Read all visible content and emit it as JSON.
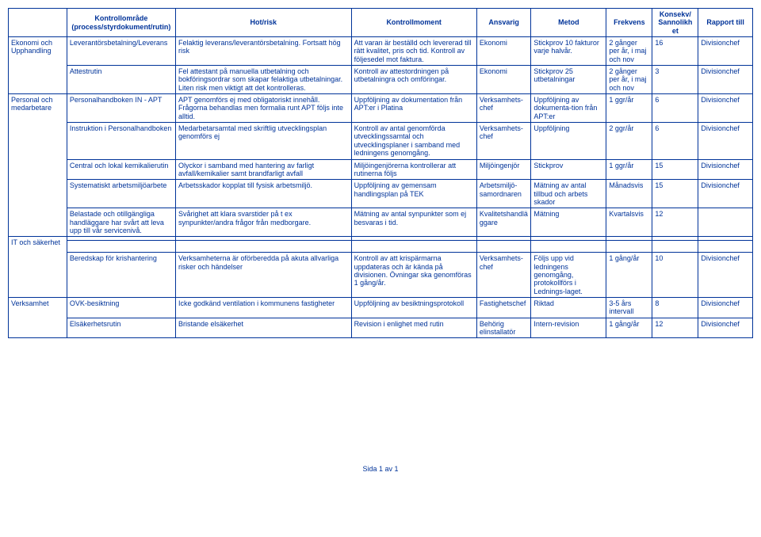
{
  "headers": {
    "col0": "",
    "col1": "Kontrollområde\n(process/styrdokument/rutin)",
    "col2": "Hot/risk",
    "col3": "Kontrollmoment",
    "col4": "Ansvarig",
    "col5": "Metod",
    "col6": "Frekvens",
    "col7": "Konsekv/\nSannolikh\net",
    "col8": "Rapport till"
  },
  "sections": {
    "s0": "Ekonomi och Upphandling",
    "s1": "Personal och medarbetare",
    "s2": "IT och säkerhet",
    "s3": "Verksamhet"
  },
  "rows": {
    "r0": {
      "c1": "Leverantörsbetalning/Leverans",
      "c2": "Felaktig leverans/leverantörsbetalning. Fortsatt hög risk",
      "c3": "Att varan är beställd och levererad till rätt kvalitet, pris och tid. Kontroll av följesedel mot faktura.",
      "c4": "Ekonomi",
      "c5": "Stickprov 10 fakturor varje halvår.",
      "c6": "2 gånger per år, i maj och nov",
      "c7": "16",
      "c8": "Divisionchef"
    },
    "r1": {
      "c1": "Attestrutin",
      "c2": "Fel attestant på manuella utbetalning och bokföringsordrar som skapar felaktiga utbetalningar.\nLiten risk men viktigt att det kontrolleras.",
      "c3": "Kontroll av attestordningen på utbetalningra och omföringar.",
      "c4": "Ekonomi",
      "c5": "Stickprov 25 utbetalningar",
      "c6": "2 gånger per år, i maj och nov",
      "c7": "3",
      "c8": "Divisionchef"
    },
    "r2": {
      "c1": "Personalhandboken IN - APT",
      "c2": "APT genomförs ej med obligatoriskt innehåll. Frågorna behandlas men formalia runt APT följs inte alltid.",
      "c3": "Uppföljning av dokumentation från APT:er i Platina",
      "c4": "Verksamhets-chef",
      "c5": "Uppföljning av dokumenta-tion från APT:er",
      "c6": "1 ggr/år",
      "c7": "6",
      "c8": "Divisionchef"
    },
    "r3": {
      "c1": "Instruktion i Personalhandboken",
      "c2": "Medarbetarsamtal med skriftlig utvecklingsplan genomförs ej",
      "c3": "Kontroll av antal genomförda utvecklingssamtal och utvecklingsplaner i samband med ledningens genomgång.",
      "c4": "Verksamhets-chef",
      "c5": "Uppföljning",
      "c6": "2 ggr/år",
      "c7": "6",
      "c8": "Divisionchef"
    },
    "r4": {
      "c1": "Central och lokal kemikalierutin",
      "c2": "Olyckor i samband med hantering av farligt avfall/kemikalier samt brandfarligt avfall",
      "c3": "Miljöingenjörerna kontrollerar att rutinerna följs",
      "c4": "Miljöingenjör",
      "c5": "Stickprov",
      "c6": "1 ggr/år",
      "c7": "15",
      "c8": "Divisionchef"
    },
    "r5": {
      "c1": "Systematiskt arbetsmiljöarbete",
      "c2": "Arbetsskador kopplat till fysisk arbetsmiljö.",
      "c3": "Uppföljning av gemensam handlingsplan på TEK",
      "c4": "Arbetsmiljö-samordnaren",
      "c5": "Mätning av antal tillbud och arbets skador",
      "c6": "Månadsvis",
      "c7": "15",
      "c8": "Divisionchef"
    },
    "r6": {
      "c1": "Belastade och otillgängliga handläggare har svårt att leva upp till vår servicenivå.",
      "c2": "Svårighet att klara svarstider på t ex synpunkter/andra frågor från medborgare.",
      "c3": "Mätning av antal synpunkter som ej besvaras i tid.",
      "c4": "Kvalitetshandläggare",
      "c5": "Mätning",
      "c6": "Kvartalsvis",
      "c7": "12",
      "c8": ""
    },
    "r7": {
      "c1": "Beredskap för krishantering",
      "c2": "Verksamheterna är oförberedda på akuta allvarliga risker och händelser",
      "c3": "Kontroll av att krispärmarna uppdateras och är kända på divisionen. Övningar ska genomföras 1 gång/år.",
      "c4": "Verksamhets-chef",
      "c5": "Följs upp vid ledningens genomgång, protokollförs i Lednings-laget.",
      "c6": "1 gång/år",
      "c7": "10",
      "c8": "Divisionchef"
    },
    "r8": {
      "c1": "OVK-besiktning",
      "c2": "Icke godkänd ventilation i kommunens fastigheter",
      "c3": "Uppföljning av besiktningsprotokoll",
      "c4": "Fastighetschef",
      "c5": "Riktad",
      "c6": "3-5 års intervall",
      "c7": "8",
      "c8": "Divisionchef"
    },
    "r9": {
      "c1": "Elsäkerhetsrutin",
      "c2": "Bristande elsäkerhet",
      "c3": "Revision i enlighet med rutin",
      "c4": "Behörig elinstallatör",
      "c5": "Intern-revision",
      "c6": "1 gång/år",
      "c7": "12",
      "c8": "Divisionchef"
    }
  },
  "footer": "Sida 1 av 1"
}
